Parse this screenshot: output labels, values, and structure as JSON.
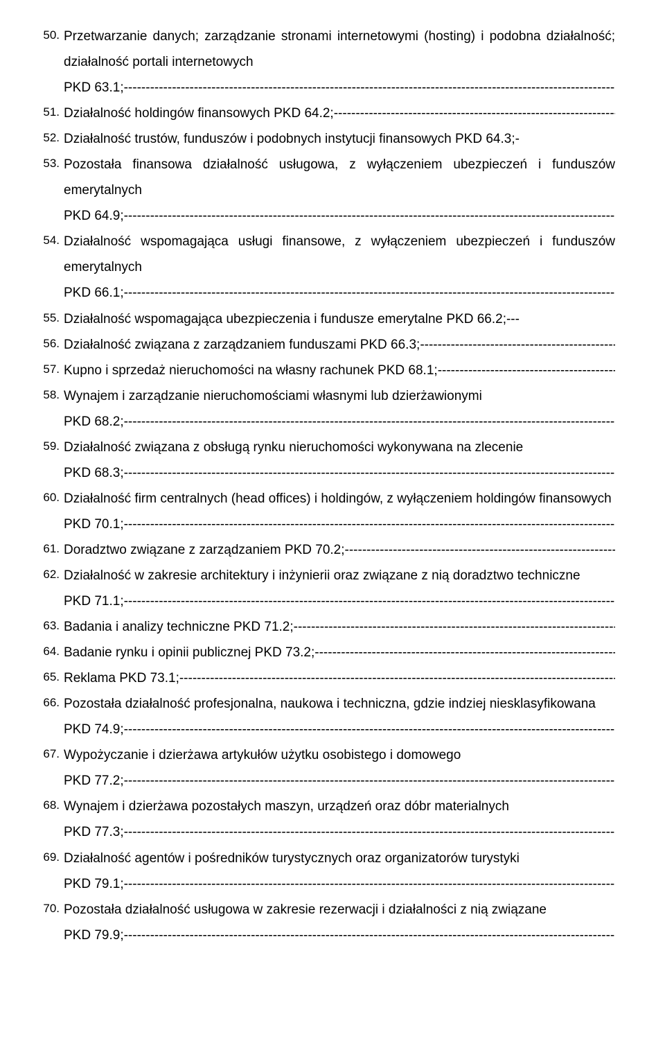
{
  "items": [
    {
      "n": "50.",
      "pre": "Przetwarzanie danych; zarządzanie stronami internetowymi (hosting) i podobna działalność; działalność portali internetowych PKD 63.1;",
      "wrap": true
    },
    {
      "n": "51.",
      "pre": "Działalność holdingów finansowych PKD 64.2;",
      "wrap": false
    },
    {
      "n": "52.",
      "pre": "Działalność trustów, funduszów i podobnych instytucji finansowych PKD 64.3;-",
      "wrap": false,
      "nofill": true
    },
    {
      "n": "53.",
      "pre": "Pozostała finansowa działalność usługowa, z wyłączeniem ubezpieczeń i funduszów emerytalnych PKD 64.9;",
      "wrap": true
    },
    {
      "n": "54.",
      "pre": "Działalność wspomagająca usługi finansowe, z wyłączeniem ubezpieczeń i funduszów emerytalnych PKD 66.1;",
      "wrap": true
    },
    {
      "n": "55.",
      "pre": "Działalność wspomagająca ubezpieczenia i fundusze emerytalne PKD 66.2;---",
      "wrap": false,
      "nofill": true
    },
    {
      "n": "56.",
      "pre": "Działalność związana z zarządzaniem funduszami PKD 66.3;",
      "wrap": false
    },
    {
      "n": "57.",
      "pre": "Kupno i sprzedaż nieruchomości na własny rachunek PKD 68.1;",
      "wrap": false
    },
    {
      "n": "58.",
      "pre": "Wynajem i zarządzanie nieruchomościami własnymi lub dzierżawionymi PKD 68.2;",
      "wrap": true
    },
    {
      "n": "59.",
      "pre": "Działalność związana z obsługą rynku nieruchomości wykonywana na zlecenie PKD 68.3;",
      "wrap": true
    },
    {
      "n": "60.",
      "pre": "Działalność firm centralnych (head offices) i holdingów, z wyłączeniem holdingów finansowych PKD 70.1;",
      "wrap": true
    },
    {
      "n": "61.",
      "pre": "Doradztwo związane z zarządzaniem PKD 70.2;",
      "wrap": false
    },
    {
      "n": "62.",
      "pre": "Działalność w zakresie architektury i inżynierii oraz związane z nią doradztwo techniczne PKD 71.1;",
      "wrap": true
    },
    {
      "n": "63.",
      "pre": "Badania i analizy techniczne PKD 71.2;",
      "wrap": false
    },
    {
      "n": "64.",
      "pre": "Badanie rynku i opinii publicznej PKD 73.2;",
      "wrap": false
    },
    {
      "n": "65.",
      "pre": "Reklama PKD 73.1;",
      "wrap": false
    },
    {
      "n": "66.",
      "pre": "Pozostała działalność profesjonalna, naukowa i techniczna, gdzie indziej niesklasyfikowana PKD 74.9;",
      "wrap": true
    },
    {
      "n": "67.",
      "pre": "Wypożyczanie i dzierżawa artykułów użytku osobistego i domowego PKD 77.2;",
      "wrap": true
    },
    {
      "n": "68.",
      "pre": "Wynajem i dzierżawa pozostałych maszyn, urządzeń oraz dóbr materialnych PKD 77.3;",
      "wrap": true
    },
    {
      "n": "69.",
      "pre": "Działalność agentów i pośredników turystycznych oraz organizatorów turystyki PKD 79.1;",
      "wrap": true
    },
    {
      "n": "70.",
      "pre": "Pozostała działalność usługowa w zakresie rezerwacji i działalności z nią związane PKD 79.9;",
      "wrap": true
    }
  ]
}
